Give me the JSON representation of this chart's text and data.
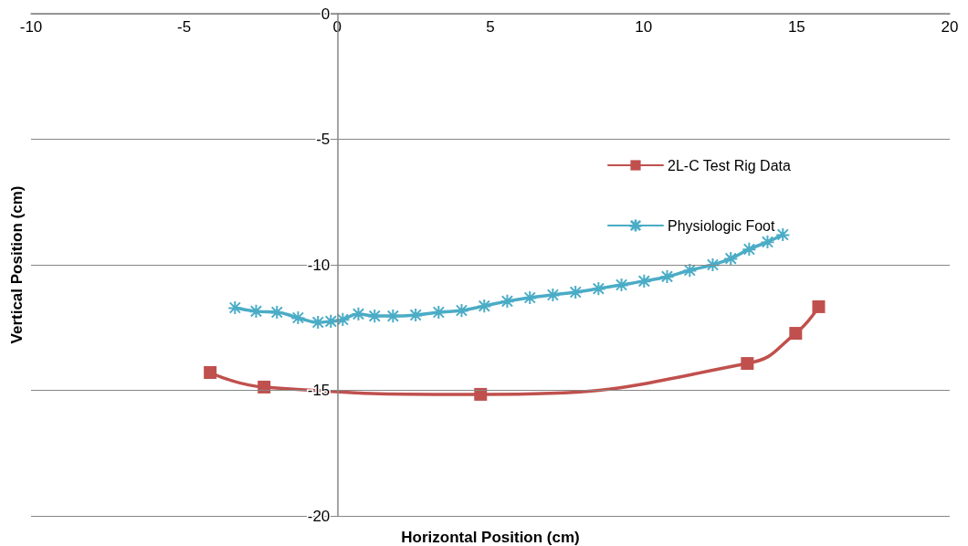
{
  "chart_data": {
    "type": "line",
    "xlabel": "Horizontal Position (cm)",
    "ylabel": "Vertical Position (cm)",
    "xlim": [
      -10,
      20
    ],
    "xticks": [
      -10,
      -5,
      0,
      5,
      10,
      15,
      20
    ],
    "ylim": [
      -20,
      0
    ],
    "yticks": [
      -20,
      -15,
      -10,
      -5,
      0
    ],
    "grid": "y",
    "legend": "right",
    "line_style": "solid",
    "series": [
      {
        "name": "2L-C Test Rig Data",
        "color": "#c0504d",
        "marker": "square",
        "x": [
          -4.15,
          -2.39,
          4.68,
          13.39,
          14.97,
          15.72
        ],
        "values": [
          -14.29,
          -14.87,
          -15.16,
          -13.93,
          -12.73,
          -11.67
        ]
      },
      {
        "name": "Physiologic Foot",
        "color": "#4bacc6",
        "marker": "star",
        "x": [
          -3.34,
          -2.65,
          -1.97,
          -1.28,
          -0.63,
          -0.21,
          0.18,
          0.69,
          1.22,
          1.82,
          2.56,
          3.31,
          4.06,
          4.8,
          5.55,
          6.29,
          7.04,
          7.78,
          8.53,
          9.28,
          10.02,
          10.77,
          11.51,
          12.26,
          12.85,
          13.45,
          14.05,
          14.55
        ],
        "values": [
          -11.71,
          -11.85,
          -11.89,
          -12.11,
          -12.29,
          -12.25,
          -12.18,
          -11.96,
          -12.04,
          -12.04,
          -12,
          -11.89,
          -11.82,
          -11.64,
          -11.45,
          -11.31,
          -11.2,
          -11.09,
          -10.95,
          -10.8,
          -10.65,
          -10.47,
          -10.22,
          -10,
          -9.75,
          -9.38,
          -9.09,
          -8.8
        ]
      }
    ]
  }
}
